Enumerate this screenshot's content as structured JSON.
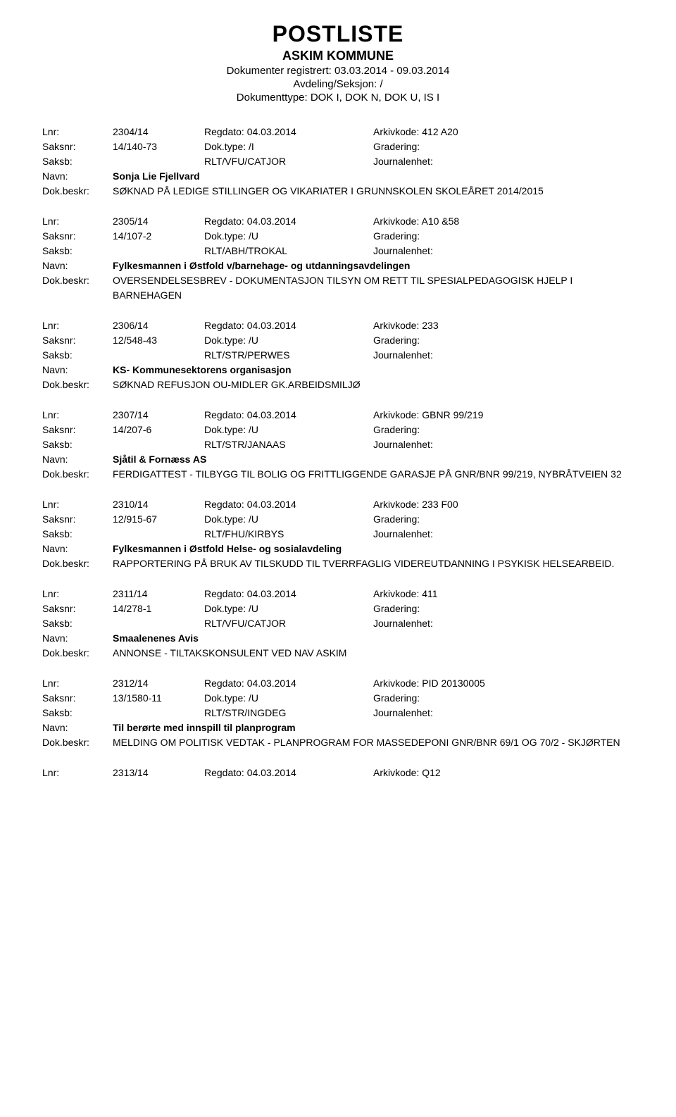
{
  "header": {
    "title": "POSTLISTE",
    "sub1": "ASKIM KOMMUNE",
    "sub2": "Dokumenter registrert: 03.03.2014 - 09.03.2014",
    "sub3": "Avdeling/Seksjon: /",
    "sub4": "Dokumenttype: DOK I, DOK N, DOK U, IS I"
  },
  "labels": {
    "lnr": "Lnr:",
    "saksnr": "Saksnr:",
    "saksb": "Saksb:",
    "navn": "Navn:",
    "beskr": "Dok.beskr:",
    "regdato": "Regdato:",
    "doktype": "Dok.type:",
    "arkivkode": "Arkivkode:",
    "gradering": "Gradering:",
    "journalenhet": "Journalenhet:"
  },
  "entries": [
    {
      "lnr": "2304/14",
      "regdato": "04.03.2014",
      "arkivkode": "412 A20",
      "saksnr": "14/140-73",
      "doktype": "/I",
      "saksb": "RLT/VFU/CATJOR",
      "navn": "Sonja Lie Fjellvard",
      "beskr": "SØKNAD PÅ LEDIGE STILLINGER OG VIKARIATER I GRUNNSKOLEN SKOLEÅRET 2014/2015"
    },
    {
      "lnr": "2305/14",
      "regdato": "04.03.2014",
      "arkivkode": "A10 &58",
      "saksnr": "14/107-2",
      "doktype": "/U",
      "saksb": "RLT/ABH/TROKAL",
      "navn": "Fylkesmannen i Østfold v/barnehage- og utdanningsavdelingen",
      "beskr": "OVERSENDELSESBREV - DOKUMENTASJON TILSYN OM RETT TIL SPESIALPEDAGOGISK HJELP I BARNEHAGEN"
    },
    {
      "lnr": "2306/14",
      "regdato": "04.03.2014",
      "arkivkode": "233",
      "saksnr": "12/548-43",
      "doktype": "/U",
      "saksb": "RLT/STR/PERWES",
      "navn": "KS- Kommunesektorens organisasjon",
      "beskr": "SØKNAD REFUSJON OU-MIDLER GK.ARBEIDSMILJØ"
    },
    {
      "lnr": "2307/14",
      "regdato": "04.03.2014",
      "arkivkode": "GBNR 99/219",
      "saksnr": "14/207-6",
      "doktype": "/U",
      "saksb": "RLT/STR/JANAAS",
      "navn": "Sjåtil & Fornæss AS",
      "beskr": "FERDIGATTEST - TILBYGG TIL BOLIG OG FRITTLIGGENDE GARASJE PÅ GNR/BNR 99/219, NYBRÅTVEIEN 32"
    },
    {
      "lnr": "2310/14",
      "regdato": "04.03.2014",
      "arkivkode": "233 F00",
      "saksnr": "12/915-67",
      "doktype": "/U",
      "saksb": "RLT/FHU/KIRBYS",
      "navn": "Fylkesmannen i Østfold Helse- og sosialavdeling",
      "beskr": "RAPPORTERING PÅ BRUK AV TILSKUDD TIL TVERRFAGLIG VIDEREUTDANNING I PSYKISK HELSEARBEID."
    },
    {
      "lnr": "2311/14",
      "regdato": "04.03.2014",
      "arkivkode": "411",
      "saksnr": "14/278-1",
      "doktype": "/U",
      "saksb": "RLT/VFU/CATJOR",
      "navn": "Smaalenenes Avis",
      "beskr": "ANNONSE - TILTAKSKONSULENT VED NAV ASKIM"
    },
    {
      "lnr": "2312/14",
      "regdato": "04.03.2014",
      "arkivkode": "PID 20130005",
      "saksnr": "13/1580-11",
      "doktype": "/U",
      "saksb": "RLT/STR/INGDEG",
      "navn": "Til berørte med innspill til planprogram",
      "beskr": "MELDING OM POLITISK VEDTAK - PLANPROGRAM FOR MASSEDEPONI GNR/BNR 69/1 OG 70/2 - SKJØRTEN"
    }
  ],
  "last": {
    "lnr": "2313/14",
    "regdato": "04.03.2014",
    "arkivkode": "Q12"
  }
}
